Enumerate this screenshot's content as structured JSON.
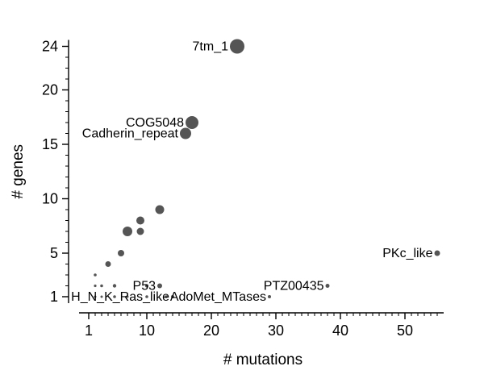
{
  "figure": {
    "background_color": "#ffffff"
  },
  "chart_data": {
    "type": "scatter",
    "title": "",
    "xlabel": "# mutations",
    "ylabel": "# genes",
    "xlim": [
      1,
      56
    ],
    "ylim": [
      1,
      24
    ],
    "x_major_ticks": [
      1,
      10,
      20,
      30,
      40,
      50
    ],
    "y_major_ticks": [
      1,
      5,
      10,
      15,
      20,
      24
    ],
    "minor_tick_step": 1,
    "grid": false,
    "legend": "none",
    "point_color": "#3d3d3d",
    "label_color": "#000000",
    "points": [
      {
        "x": 24,
        "y": 24,
        "r": 9,
        "label": "7tm_1"
      },
      {
        "x": 17,
        "y": 17,
        "r": 8,
        "label": "COG5048"
      },
      {
        "x": 16,
        "y": 16,
        "r": 7,
        "label": "Cadherin_repeat"
      },
      {
        "x": 12,
        "y": 9,
        "r": 5.5
      },
      {
        "x": 9,
        "y": 8,
        "r": 5
      },
      {
        "x": 7,
        "y": 7,
        "r": 6
      },
      {
        "x": 9,
        "y": 7,
        "r": 4.5
      },
      {
        "x": 6,
        "y": 5,
        "r": 4
      },
      {
        "x": 4,
        "y": 4,
        "r": 3.5
      },
      {
        "x": 2,
        "y": 3,
        "r": 1.8
      },
      {
        "x": 55,
        "y": 5,
        "r": 3.5,
        "label": "PKc_like"
      },
      {
        "x": 12,
        "y": 2,
        "r": 3,
        "label": "P53"
      },
      {
        "x": 38,
        "y": 2,
        "r": 2.5,
        "label": "PTZ00435"
      },
      {
        "x": 2,
        "y": 2,
        "r": 1.6
      },
      {
        "x": 3,
        "y": 2,
        "r": 1.8
      },
      {
        "x": 5,
        "y": 2,
        "r": 2.2
      },
      {
        "x": 10,
        "y": 2,
        "r": 2.2
      },
      {
        "x": 14,
        "y": 1,
        "r": 2,
        "label": "H_N_K_Ras_like"
      },
      {
        "x": 29,
        "y": 1,
        "r": 2,
        "label": "AdoMet_MTases"
      },
      {
        "x": 2,
        "y": 1,
        "r": 1.5
      },
      {
        "x": 3,
        "y": 1,
        "r": 1.5
      },
      {
        "x": 5,
        "y": 1,
        "r": 1.8
      },
      {
        "x": 7,
        "y": 1,
        "r": 1.5
      },
      {
        "x": 10,
        "y": 1,
        "r": 1.8
      },
      {
        "x": 13,
        "y": 1,
        "r": 1.8
      }
    ]
  }
}
